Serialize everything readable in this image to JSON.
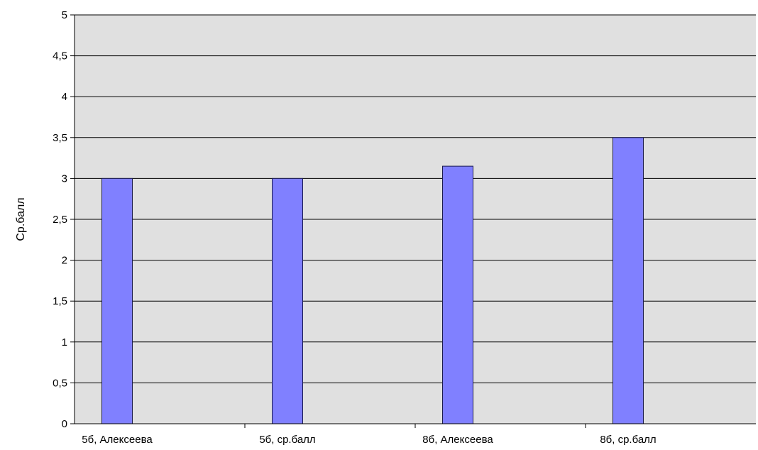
{
  "chart_data": {
    "type": "bar",
    "title": "",
    "xlabel": "",
    "ylabel": "Ср.балл",
    "categories": [
      "5б, Алексеева",
      "5б, ср.балл",
      "8б, Алексеева",
      "8б, ср.балл"
    ],
    "values": [
      3,
      3,
      3.15,
      3.5
    ],
    "ylim": [
      0,
      5
    ],
    "yticks": [
      0,
      0.5,
      1,
      1.5,
      2,
      2.5,
      3,
      3.5,
      4,
      4.5,
      5
    ],
    "ytick_labels": [
      "0",
      "0,5",
      "1",
      "1,5",
      "2",
      "2,5",
      "3",
      "3,5",
      "4",
      "4,5",
      "5"
    ],
    "grid": true,
    "legend": "none",
    "colors": {
      "bar_fill": "#8080ff",
      "bar_stroke": "#1a1a4d",
      "plot_background": "#e0e0e0",
      "gridline": "#000000",
      "axis": "#000000"
    }
  }
}
